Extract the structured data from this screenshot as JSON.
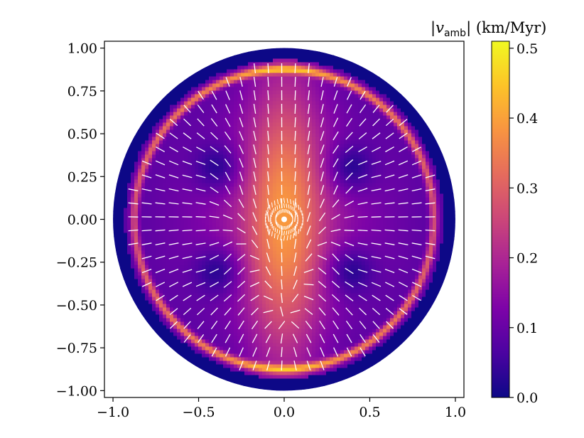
{
  "chart_data": {
    "type": "heatmap",
    "title": "",
    "xlabel": "",
    "ylabel": "",
    "xlim": [
      -1.05,
      1.05
    ],
    "ylim": [
      -1.04,
      1.04
    ],
    "x_ticks": [
      -1.0,
      -0.5,
      0.0,
      0.5,
      1.0
    ],
    "x_tick_labels": [
      "−1.0",
      "−0.5",
      "0.0",
      "0.5",
      "1.0"
    ],
    "y_ticks": [
      1.0,
      0.75,
      0.5,
      0.25,
      0.0,
      -0.25,
      -0.5,
      -0.75,
      -1.0
    ],
    "y_tick_labels": [
      "1.00",
      "0.75",
      "0.50",
      "0.25",
      "0.00",
      "−0.25",
      "−0.50",
      "−0.75",
      "−1.00"
    ],
    "domain_radius": 1.0,
    "colormap": "plasma",
    "colorbar": {
      "label_symbol": "v",
      "label_subscript": "amb",
      "label_units": "(km/Myr)",
      "range": [
        0.0,
        0.51
      ],
      "ticks": [
        0.0,
        0.1,
        0.2,
        0.3,
        0.4,
        0.5
      ],
      "tick_labels": [
        "0.0",
        "0.1",
        "0.2",
        "0.3",
        "0.4",
        "0.5"
      ]
    },
    "vector_field": {
      "color": "#ffffff",
      "style": "headless segments"
    }
  }
}
